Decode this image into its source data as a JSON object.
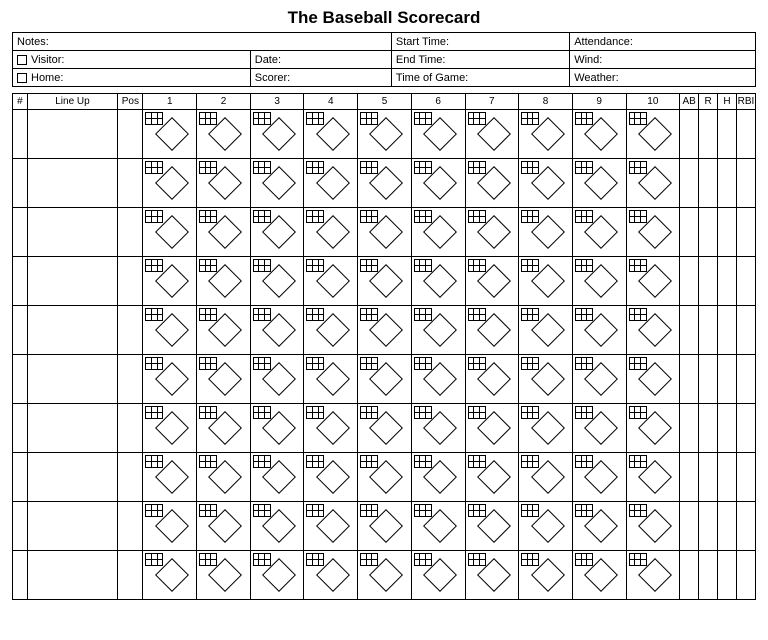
{
  "title": "The Baseball Scorecard",
  "info": {
    "notes": "Notes:",
    "visitor": "Visitor:",
    "home": "Home:",
    "date": "Date:",
    "scorer": "Scorer:",
    "start_time": "Start Time:",
    "end_time": "End Time:",
    "time_of_game": "Time of Game:",
    "attendance": "Attendance:",
    "wind": "Wind:",
    "weather": "Weather:"
  },
  "columns": {
    "num": "#",
    "lineup": "Line Up",
    "pos": "Pos",
    "innings": [
      "1",
      "2",
      "3",
      "4",
      "5",
      "6",
      "7",
      "8",
      "9",
      "10"
    ],
    "stats": [
      "AB",
      "R",
      "H",
      "RBI"
    ]
  },
  "layout": {
    "batter_rows": 10,
    "sub_rows_per_batter": 2,
    "colors": {
      "line": "#000000",
      "background": "#ffffff",
      "text": "#000000"
    },
    "fonts": {
      "title_pt": 17,
      "body_pt": 11,
      "header_pt": 10
    }
  }
}
